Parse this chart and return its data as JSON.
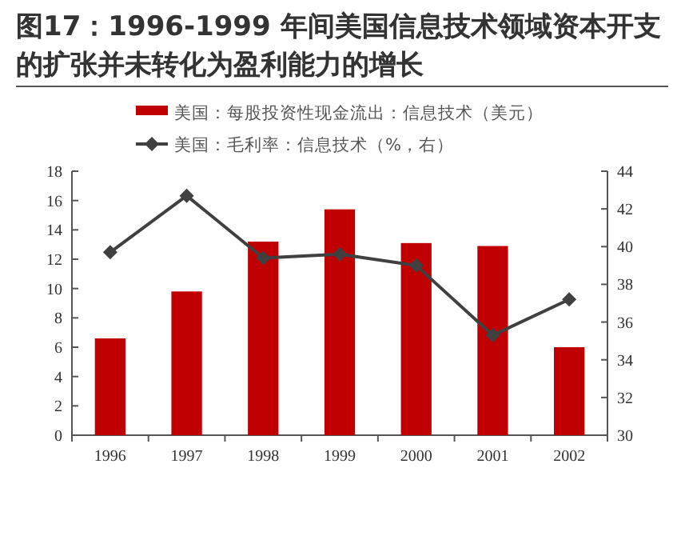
{
  "chart_data": {
    "type": "bar",
    "title": "图17：1996-1999 年间美国信息技术领域资本开支的扩张并未转化为盈利能力的增长",
    "categories": [
      "1996",
      "1997",
      "1998",
      "1999",
      "2000",
      "2001",
      "2002"
    ],
    "series": [
      {
        "name": "美国：每股投资性现金流出：信息技术（美元）",
        "color": "#c00000",
        "values": [
          6.6,
          9.8,
          13.2,
          15.4,
          13.1,
          12.9,
          6.0
        ]
      },
      {
        "name": "美国：毛利率：信息技术（%，右）",
        "type": "line",
        "axis": "y2",
        "color": "#404040",
        "marker": "diamond",
        "values": [
          39.7,
          42.7,
          39.4,
          39.6,
          39.0,
          35.3,
          37.2
        ]
      }
    ],
    "ylim": [
      0,
      18
    ],
    "yticks": [
      0,
      2,
      4,
      6,
      8,
      10,
      12,
      14,
      16,
      18
    ],
    "y2lim": [
      30,
      44
    ],
    "y2ticks": [
      30,
      32,
      34,
      36,
      38,
      40,
      42,
      44
    ],
    "legend": "top",
    "grid": false
  }
}
